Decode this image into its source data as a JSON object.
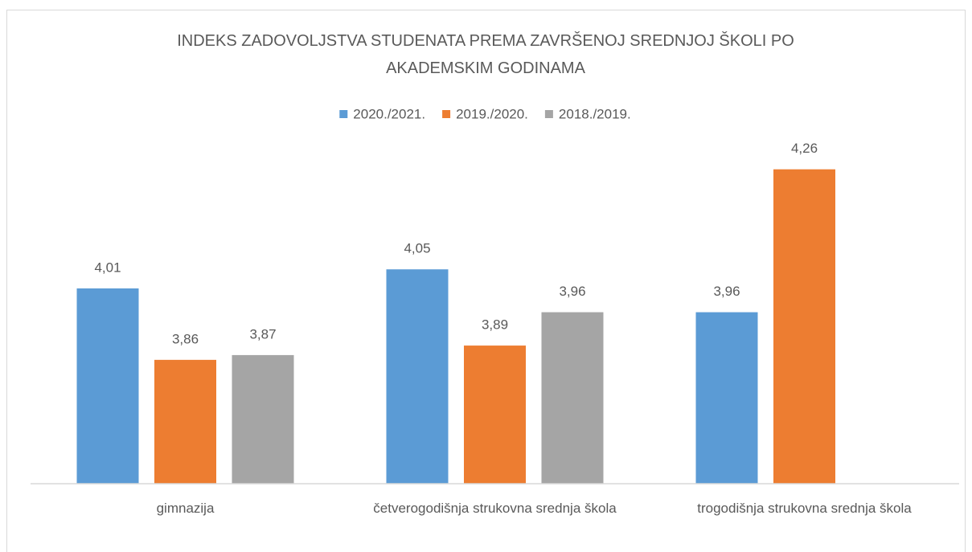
{
  "chart_data": {
    "type": "bar",
    "title": "INDEKS ZADOVOLJSTVA STUDENATA PREMA ZAVRŠENOJ SREDNJOJ ŠKOLI PO AKADEMSKIM GODINAMA",
    "categories": [
      "gimnazija",
      "četverogodišnja strukovna srednja škola",
      "trogodišnja strukovna srednja škola"
    ],
    "series": [
      {
        "name": "2020./2021.",
        "color": "#5b9bd5",
        "values": [
          4.01,
          4.05,
          3.96
        ],
        "value_labels": [
          "4,01",
          "4,05",
          "3,96"
        ]
      },
      {
        "name": "2019./2020.",
        "color": "#ed7d31",
        "values": [
          3.86,
          3.89,
          4.26
        ],
        "value_labels": [
          "3,86",
          "3,89",
          "4,26"
        ]
      },
      {
        "name": "2018./2019.",
        "color": "#a5a5a5",
        "values": [
          3.87,
          3.96,
          null
        ],
        "value_labels": [
          "3,87",
          "3,96",
          null
        ]
      }
    ],
    "ylim": [
      3.6,
      4.3
    ],
    "legend": "top"
  }
}
